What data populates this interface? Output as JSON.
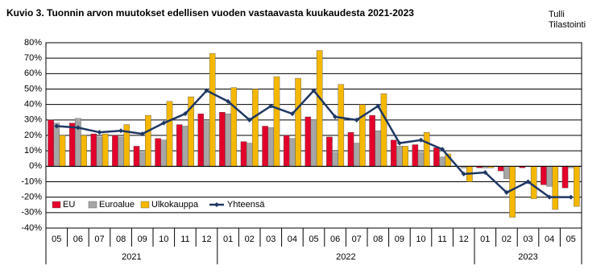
{
  "chart_data": {
    "type": "bar_line",
    "title": "Kuvio 3. Tuonnin arvon muutokset edellisen vuoden vastaavasta kuukaudesta 2021-2023",
    "source": [
      "Tulli",
      "Tilastointi"
    ],
    "groups": [
      {
        "label": "2021",
        "categories": [
          "05",
          "06",
          "07",
          "08",
          "09",
          "10",
          "11",
          "12"
        ]
      },
      {
        "label": "2022",
        "categories": [
          "01",
          "02",
          "03",
          "04",
          "05",
          "06",
          "07",
          "08",
          "09",
          "10",
          "11",
          "12"
        ]
      },
      {
        "label": "2023",
        "categories": [
          "01",
          "02",
          "03",
          "04",
          "05"
        ]
      }
    ],
    "series": [
      {
        "name": "EU",
        "kind": "bar",
        "color": "#e2002a",
        "values": [
          30,
          28,
          21,
          20,
          13,
          18,
          27,
          34,
          35,
          16,
          26,
          20,
          32,
          19,
          22,
          33,
          17,
          14,
          12,
          0,
          -1,
          -3,
          -1,
          -12,
          -14
        ]
      },
      {
        "name": "Euroalue",
        "kind": "bar",
        "color": "#a6a6a6",
        "values": [
          28,
          31,
          19,
          19,
          9,
          17,
          26,
          29,
          34,
          15,
          25,
          18,
          30,
          9,
          15,
          23,
          13,
          9,
          6,
          -1,
          -1,
          -8,
          0,
          -13,
          -1
        ]
      },
      {
        "name": "Ulkokauppa",
        "kind": "bar",
        "color": "#f5b800",
        "values": [
          20,
          20,
          21,
          27,
          33,
          42,
          45,
          73,
          51,
          50,
          58,
          57,
          75,
          53,
          40,
          47,
          13,
          22,
          8,
          -10,
          -1,
          -33,
          -21,
          -28,
          -26
        ]
      },
      {
        "name": "Yhteensä",
        "kind": "line",
        "color": "#1f3864",
        "values": [
          26,
          25,
          22,
          23,
          21,
          28,
          34,
          49,
          42,
          30,
          39,
          34,
          49,
          32,
          30,
          39,
          15,
          17,
          11,
          -5,
          -4,
          -17,
          -10,
          -20,
          -20
        ]
      }
    ],
    "ylim": [
      -40,
      80
    ],
    "yticks": [
      {
        "value": -40,
        "label": "-40%"
      },
      {
        "value": -30,
        "label": "-30%"
      },
      {
        "value": -20,
        "label": "-20%"
      },
      {
        "value": -10,
        "label": "-10%"
      },
      {
        "value": 0,
        "label": "0%"
      },
      {
        "value": 10,
        "label": "10%"
      },
      {
        "value": 20,
        "label": "20%"
      },
      {
        "value": 30,
        "label": "30%"
      },
      {
        "value": 40,
        "label": "40%"
      },
      {
        "value": 50,
        "label": "50%"
      },
      {
        "value": 60,
        "label": "60%"
      },
      {
        "value": 70,
        "label": "70%"
      },
      {
        "value": 80,
        "label": "80%"
      }
    ],
    "grid": true,
    "legend": "bottom-left"
  }
}
